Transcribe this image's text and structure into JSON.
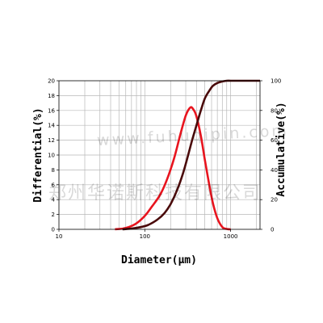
{
  "chart_data": {
    "type": "line",
    "xlabel": "Diameter(μm)",
    "ylabel_left": "Differential(%)",
    "ylabel_right": "Accumulative(%)",
    "x_scale": "log",
    "xlim": [
      10,
      2200
    ],
    "ylim_left": [
      0,
      20
    ],
    "ylim_right": [
      0,
      100
    ],
    "x_ticks": [
      10,
      100,
      1000
    ],
    "x_tick_labels": [
      "10",
      "100",
      "1000"
    ],
    "y_left_ticks": [
      0,
      2,
      4,
      6,
      8,
      10,
      12,
      14,
      16,
      18,
      20
    ],
    "y_right_ticks": [
      0,
      20,
      40,
      60,
      80,
      100
    ],
    "grid": true,
    "colors": {
      "differential": "#e8141e",
      "accumulative": "#4a0a0a",
      "grid": "#b8b8b8",
      "frame": "#000000"
    },
    "series": [
      {
        "axis": "left",
        "x": [
          45,
          55,
          65,
          80,
          100,
          120,
          150,
          180,
          220,
          260,
          300,
          340,
          370,
          400,
          450,
          500,
          560,
          620,
          700,
          800,
          900,
          1000
        ],
        "y": [
          0,
          0.1,
          0.3,
          0.8,
          1.8,
          3.0,
          4.6,
          6.6,
          9.6,
          12.8,
          15.3,
          16.4,
          16.1,
          15.2,
          12.6,
          9.4,
          6.2,
          3.6,
          1.5,
          0.3,
          0.05,
          0
        ]
      },
      {
        "axis": "right",
        "x": [
          55,
          70,
          90,
          110,
          140,
          170,
          200,
          240,
          280,
          320,
          360,
          400,
          450,
          500,
          560,
          620,
          700,
          800,
          900,
          1000,
          1200,
          1500,
          2200
        ],
        "y": [
          0,
          0.5,
          1.5,
          3,
          6.5,
          11,
          17,
          27,
          38,
          50,
          61,
          70,
          80,
          88,
          93,
          96.5,
          98.5,
          99.5,
          100,
          100,
          100,
          100,
          100
        ]
      }
    ]
  },
  "watermark": {
    "text1": "www.fuhuqipin.com",
    "text2": "郑州华诺斯科技有限公司"
  }
}
